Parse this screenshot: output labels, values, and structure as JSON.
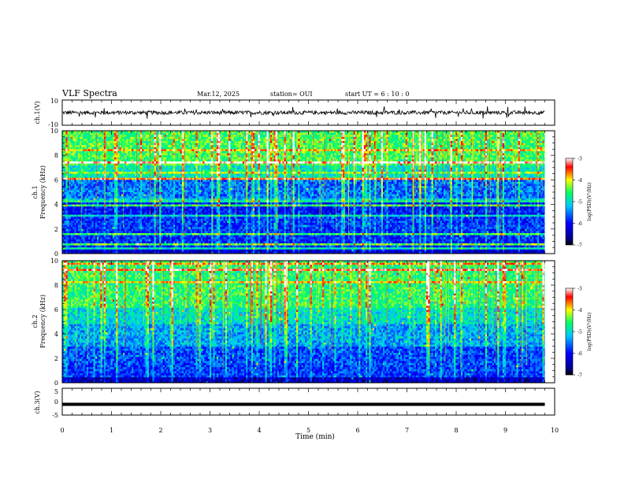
{
  "header": {
    "title": "VLF Spectra",
    "date": "Mar.12, 2025",
    "station": "station= OUI",
    "start": "start  UT =   6 : 10 : 0"
  },
  "chart_data": [
    {
      "type": "line",
      "panel": "ch1-waveform",
      "ylabel": "ch.1(V)",
      "ylim": [
        -10,
        10
      ],
      "yticks": [
        "10",
        "-10"
      ],
      "xlim": [
        0,
        10
      ],
      "description_values": {
        "baseline": 0,
        "noise_amplitude": 1.5,
        "max_spike": 5
      }
    },
    {
      "type": "heatmap",
      "panel": "ch1-spectrogram",
      "ylabel": "ch.1\nFrequency (kHz)",
      "ylabel_line1": "ch.1",
      "ylabel_line2": "Frequency (kHz)",
      "ylim": [
        0,
        10
      ],
      "yticks": [
        "0",
        "2",
        "4",
        "6",
        "8",
        "10"
      ],
      "xlim": [
        0,
        10
      ],
      "data_end_min": 9.8,
      "colorbar": {
        "label": "log(PSD)(V²/Hz)",
        "range": [
          -7,
          -3
        ],
        "ticks": [
          "-7",
          "-6",
          "-5",
          "-4",
          "-3"
        ]
      }
    },
    {
      "type": "heatmap",
      "panel": "ch2-spectrogram",
      "ylabel": "ch.2\nFrequency (kHz)",
      "ylabel_line1": "ch.2",
      "ylabel_line2": "Frequency (kHz)",
      "ylim": [
        0,
        10
      ],
      "yticks": [
        "0",
        "2",
        "4",
        "6",
        "8",
        "10"
      ],
      "xlim": [
        0,
        10
      ],
      "data_end_min": 9.8,
      "colorbar": {
        "label": "log(PSD)(V²/Hz)",
        "range": [
          -7,
          -3
        ],
        "ticks": [
          "-7",
          "-6",
          "-5",
          "-4",
          "-3"
        ]
      }
    },
    {
      "type": "line",
      "panel": "ch3-waveform",
      "ylabel": "ch.3(V)",
      "ylim": [
        -5,
        5
      ],
      "yticks": [
        "5",
        "0",
        "-5"
      ],
      "xlim": [
        0,
        10
      ],
      "description_values": {
        "level": -1.0
      }
    }
  ],
  "xaxis": {
    "label": "Time (min)",
    "ticks": [
      "0",
      "1",
      "2",
      "3",
      "4",
      "5",
      "6",
      "7",
      "8",
      "9",
      "10"
    ]
  },
  "colors": {
    "colormap": [
      "#000080",
      "#0000ff",
      "#00c8ff",
      "#00ff80",
      "#ffff00",
      "#ff0000",
      "#ffffff"
    ]
  }
}
